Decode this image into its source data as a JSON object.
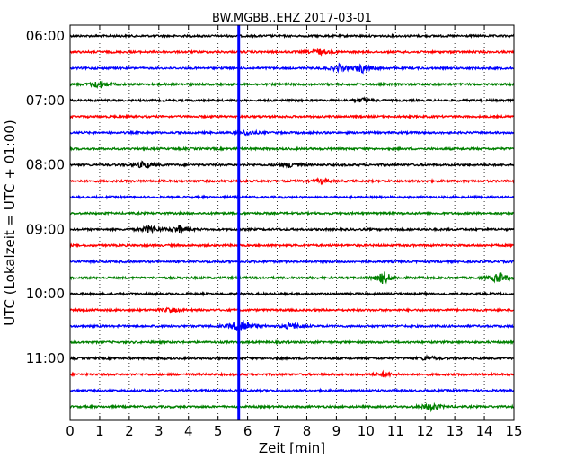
{
  "chart_data": {
    "type": "line",
    "title": "BW.MGBB..EHZ 2017-03-01",
    "xlabel": "Zeit  [min]",
    "ylabel": "UTC (Lokalzeit = UTC + 01:00)",
    "xlim": [
      0,
      15
    ],
    "x_ticks": [
      "0",
      "1",
      "2",
      "3",
      "4",
      "5",
      "6",
      "7",
      "8",
      "9",
      "10",
      "11",
      "12",
      "13",
      "14",
      "15"
    ],
    "y_tick_labels": [
      "06:00",
      "07:00",
      "08:00",
      "09:00",
      "10:00",
      "11:00"
    ],
    "grid": "vertical dotted",
    "trace_colors": [
      "#000000",
      "#ff0000",
      "#0000ff",
      "#008000"
    ],
    "traces": [
      {
        "start": "06:00",
        "events": []
      },
      {
        "start": "06:15",
        "events": [
          {
            "x": 8.4,
            "amp": 0.4
          }
        ]
      },
      {
        "start": "06:30",
        "events": [
          {
            "x": 9.9,
            "amp": 0.6
          },
          {
            "x": 9.1,
            "amp": 0.5
          }
        ]
      },
      {
        "start": "06:45",
        "events": [
          {
            "x": 1.0,
            "amp": 0.6
          }
        ]
      },
      {
        "start": "07:00",
        "events": [
          {
            "x": 9.9,
            "amp": 0.3
          }
        ]
      },
      {
        "start": "07:15",
        "events": []
      },
      {
        "start": "07:30",
        "events": [
          {
            "x": 6.0,
            "amp": 0.3
          }
        ]
      },
      {
        "start": "07:45",
        "events": []
      },
      {
        "start": "08:00",
        "events": [
          {
            "x": 2.5,
            "amp": 0.5
          },
          {
            "x": 7.5,
            "amp": 0.4
          }
        ]
      },
      {
        "start": "08:15",
        "events": [
          {
            "x": 8.5,
            "amp": 0.3
          }
        ]
      },
      {
        "start": "08:30",
        "events": []
      },
      {
        "start": "08:45",
        "events": []
      },
      {
        "start": "09:00",
        "events": [
          {
            "x": 2.7,
            "amp": 0.6
          },
          {
            "x": 3.7,
            "amp": 0.5
          }
        ]
      },
      {
        "start": "09:15",
        "events": []
      },
      {
        "start": "09:30",
        "events": []
      },
      {
        "start": "09:45",
        "events": [
          {
            "x": 10.6,
            "amp": 0.9
          },
          {
            "x": 14.5,
            "amp": 0.8
          }
        ]
      },
      {
        "start": "10:00",
        "events": []
      },
      {
        "start": "10:15",
        "events": [
          {
            "x": 3.4,
            "amp": 0.3
          }
        ]
      },
      {
        "start": "10:30",
        "events": [
          {
            "x": 5.8,
            "amp": 1.4
          },
          {
            "x": 7.5,
            "amp": 0.5
          }
        ]
      },
      {
        "start": "10:45",
        "events": []
      },
      {
        "start": "11:00",
        "events": [
          {
            "x": 12.1,
            "amp": 0.3
          }
        ]
      },
      {
        "start": "11:15",
        "events": [
          {
            "x": 10.6,
            "amp": 0.3
          }
        ]
      },
      {
        "start": "11:30",
        "events": []
      },
      {
        "start": "11:45",
        "events": [
          {
            "x": 12.2,
            "amp": 0.6
          }
        ]
      }
    ],
    "vertical_marker": {
      "x": 5.7,
      "color": "#0000ff"
    }
  }
}
